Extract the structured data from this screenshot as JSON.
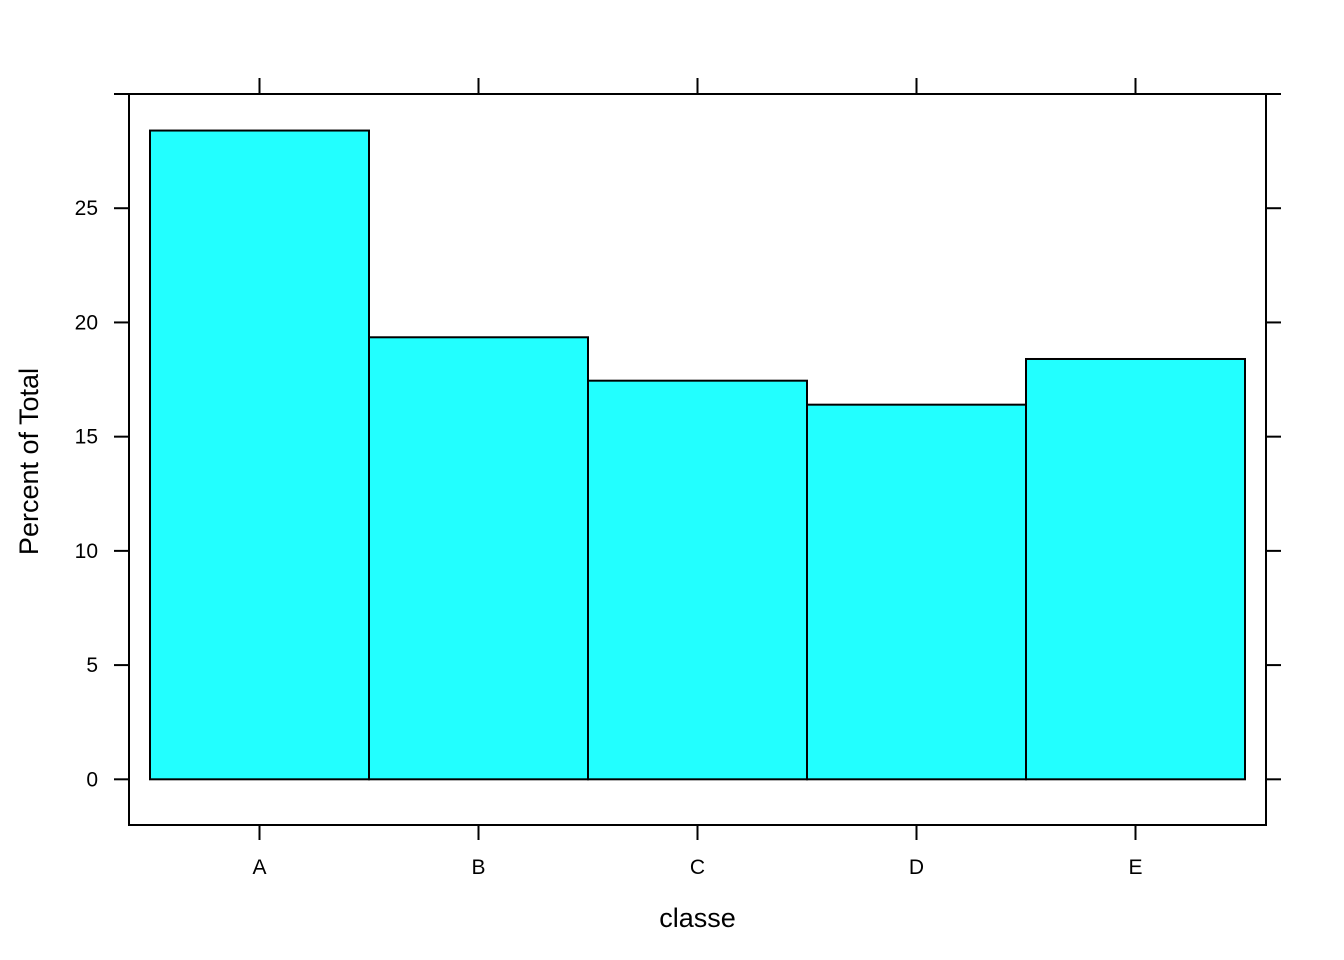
{
  "chart_data": {
    "type": "bar",
    "categories": [
      "A",
      "B",
      "C",
      "D",
      "E"
    ],
    "values": [
      28.4,
      19.35,
      17.45,
      16.4,
      18.4
    ],
    "title": "",
    "xlabel": "classe",
    "ylabel": "Percent of Total",
    "ylim": [
      -2,
      30
    ],
    "yticks": [
      0,
      5,
      10,
      15,
      20,
      25
    ],
    "bar_color": "#22FFFF",
    "bar_edge_color": "#000000",
    "grid": false,
    "legend": "none"
  }
}
